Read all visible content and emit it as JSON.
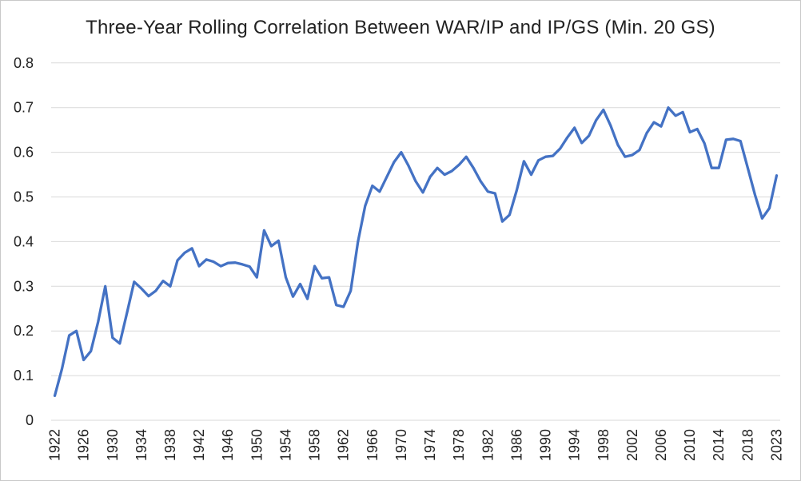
{
  "chart_data": {
    "type": "line",
    "title": "Three-Year Rolling Correlation Between WAR/IP and IP/GS (Min. 20 GS)",
    "xlabel": "",
    "ylabel": "",
    "ylim": [
      0,
      0.8
    ],
    "grid": "horizontal",
    "legend": "none",
    "line_color": "#4472C4",
    "gridline_color": "#D9D9D9",
    "text_color": "#222222",
    "background_color": "#FFFFFF",
    "y_tick_labels": [
      "0",
      "0.1",
      "0.2",
      "0.3",
      "0.4",
      "0.5",
      "0.6",
      "0.7",
      "0.8"
    ],
    "x_tick_labels": [
      "1922",
      "1926",
      "1930",
      "1934",
      "1938",
      "1942",
      "1946",
      "1950",
      "1954",
      "1958",
      "1962",
      "1966",
      "1970",
      "1974",
      "1978",
      "1982",
      "1986",
      "1990",
      "1994",
      "1998",
      "2002",
      "2006",
      "2010",
      "2014",
      "2018",
      "2023"
    ],
    "x": [
      1922,
      1923,
      1924,
      1925,
      1926,
      1927,
      1928,
      1929,
      1930,
      1931,
      1932,
      1933,
      1934,
      1935,
      1936,
      1937,
      1938,
      1939,
      1940,
      1941,
      1942,
      1943,
      1944,
      1945,
      1946,
      1947,
      1948,
      1949,
      1950,
      1951,
      1952,
      1953,
      1954,
      1955,
      1956,
      1957,
      1958,
      1959,
      1960,
      1961,
      1962,
      1963,
      1964,
      1965,
      1966,
      1967,
      1968,
      1969,
      1970,
      1971,
      1972,
      1973,
      1974,
      1975,
      1976,
      1977,
      1978,
      1979,
      1980,
      1981,
      1982,
      1983,
      1984,
      1985,
      1986,
      1987,
      1988,
      1989,
      1990,
      1991,
      1992,
      1993,
      1994,
      1995,
      1996,
      1997,
      1998,
      1999,
      2000,
      2001,
      2002,
      2003,
      2004,
      2005,
      2006,
      2007,
      2008,
      2009,
      2010,
      2011,
      2012,
      2013,
      2014,
      2015,
      2016,
      2017,
      2018,
      2019,
      2021,
      2022,
      2023
    ],
    "values": [
      0.055,
      0.115,
      0.19,
      0.2,
      0.135,
      0.155,
      0.22,
      0.3,
      0.185,
      0.172,
      0.24,
      0.31,
      0.295,
      0.278,
      0.29,
      0.312,
      0.3,
      0.358,
      0.375,
      0.385,
      0.345,
      0.36,
      0.355,
      0.345,
      0.352,
      0.353,
      0.349,
      0.344,
      0.32,
      0.425,
      0.39,
      0.402,
      0.32,
      0.277,
      0.305,
      0.272,
      0.345,
      0.318,
      0.32,
      0.258,
      0.254,
      0.29,
      0.4,
      0.48,
      0.525,
      0.512,
      0.545,
      0.578,
      0.6,
      0.57,
      0.535,
      0.51,
      0.545,
      0.565,
      0.55,
      0.558,
      0.572,
      0.59,
      0.565,
      0.535,
      0.512,
      0.508,
      0.445,
      0.46,
      0.515,
      0.58,
      0.55,
      0.582,
      0.59,
      0.592,
      0.608,
      0.633,
      0.655,
      0.621,
      0.637,
      0.672,
      0.695,
      0.66,
      0.617,
      0.59,
      0.594,
      0.605,
      0.643,
      0.667,
      0.658,
      0.7,
      0.682,
      0.69,
      0.645,
      0.652,
      0.62,
      0.565,
      0.565,
      0.628,
      0.63,
      0.625,
      0.565,
      0.505,
      0.452,
      0.475,
      0.548
    ]
  }
}
